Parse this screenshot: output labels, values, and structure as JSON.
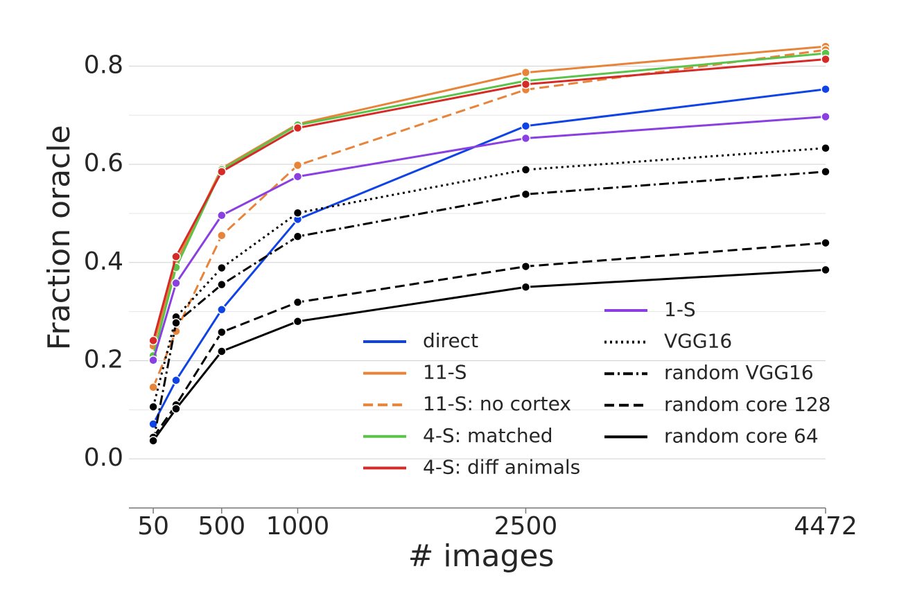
{
  "chart_data": {
    "type": "line",
    "x_label": "# images",
    "y_label": "Fraction oracle",
    "xlim": [
      -110,
      4472
    ],
    "ylim": [
      -0.1,
      0.85
    ],
    "xticks": [
      50,
      500,
      1000,
      2500,
      4472
    ],
    "yticks": [
      {
        "value": 0,
        "label": "0.0"
      },
      0.2,
      0.4,
      0.6,
      0.8
    ],
    "minor_yticks": [
      0.1,
      0.3,
      0.5,
      0.7
    ],
    "grid": true,
    "x": [
      50,
      200,
      500,
      1000,
      2500,
      4472
    ],
    "series": [
      {
        "name": "direct",
        "color": "#1043e6",
        "dash": "solid",
        "values": [
          0.071,
          0.16,
          0.304,
          0.488,
          0.678,
          0.753
        ]
      },
      {
        "name": "11-S",
        "color": "#e8833a",
        "dash": "solid",
        "values": [
          0.23,
          0.4,
          0.592,
          0.682,
          0.787,
          0.84
        ]
      },
      {
        "name": "11-S: no cortex",
        "color": "#e8833a",
        "dash": "dashed",
        "values": [
          0.146,
          0.26,
          0.455,
          0.598,
          0.752,
          0.833
        ]
      },
      {
        "name": "4-S: matched",
        "color": "#5cc34a",
        "dash": "solid",
        "values": [
          0.21,
          0.39,
          0.589,
          0.68,
          0.77,
          0.826
        ]
      },
      {
        "name": "4-S: diff animals",
        "color": "#d62a27",
        "dash": "solid",
        "values": [
          0.241,
          0.412,
          0.585,
          0.674,
          0.763,
          0.814
        ]
      },
      {
        "name": "1-S",
        "color": "#8a3fe0",
        "dash": "solid",
        "values": [
          0.201,
          0.358,
          0.496,
          0.575,
          0.653,
          0.697
        ]
      },
      {
        "name": "VGG16",
        "color": "#000000",
        "dash": "dotted",
        "values": [
          0.106,
          0.289,
          0.389,
          0.501,
          0.589,
          0.633
        ]
      },
      {
        "name": "random VGG16",
        "color": "#000000",
        "dash": "dashdot",
        "values": [
          0.035,
          0.277,
          0.355,
          0.453,
          0.539,
          0.585
        ]
      },
      {
        "name": "random core 128",
        "color": "#000000",
        "dash": "dashed",
        "values": [
          0.044,
          0.11,
          0.258,
          0.319,
          0.392,
          0.44
        ]
      },
      {
        "name": "random core 64",
        "color": "#000000",
        "dash": "solid",
        "values": [
          0.037,
          0.102,
          0.219,
          0.28,
          0.35,
          0.385
        ]
      }
    ]
  }
}
